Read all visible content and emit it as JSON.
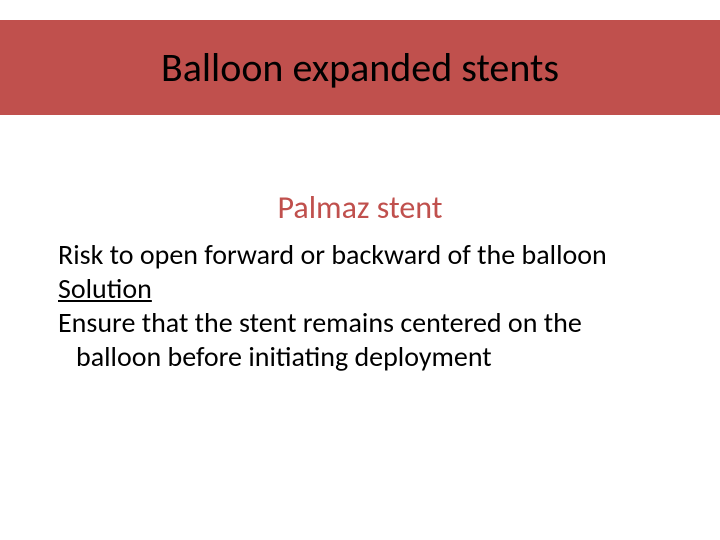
{
  "slide": {
    "title": "Balloon expanded stents",
    "subtitle": "Palmaz stent",
    "body": {
      "risk_line": "Risk to open forward or backward of the balloon",
      "solution_label": "Solution",
      "solution_text_1": "Ensure that the stent remains centered on the",
      "solution_text_2": "balloon before initiating deployment"
    }
  },
  "style": {
    "banner_bg": "#c0504d",
    "subtitle_color": "#c0504d",
    "title_color": "#000000",
    "body_color": "#000000",
    "background": "#ffffff",
    "title_fontsize": 40,
    "subtitle_fontsize": 32,
    "body_fontsize": 28
  }
}
